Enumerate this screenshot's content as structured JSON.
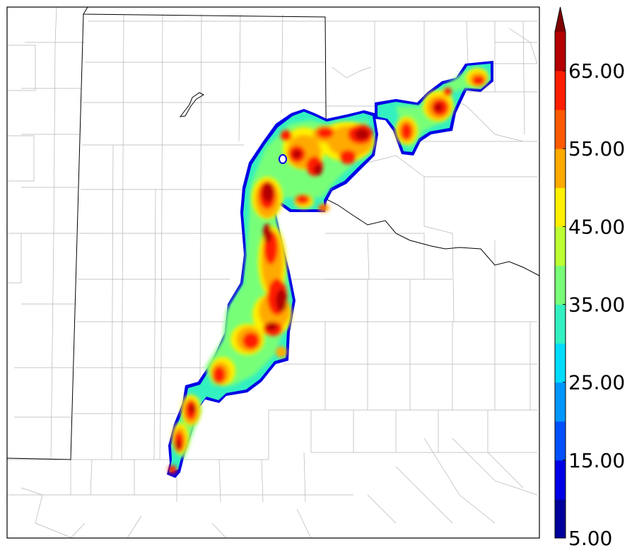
{
  "map": {
    "type": "filled-contour",
    "boundaries": [
      "county-lines",
      "state-lines"
    ]
  },
  "colorbar": {
    "extend": "max",
    "levels": [
      5,
      10,
      15,
      20,
      25,
      30,
      35,
      40,
      45,
      50,
      55,
      60,
      65,
      70
    ],
    "colors": [
      "#00009b",
      "#0000e6",
      "#0050ff",
      "#0096ff",
      "#00dcff",
      "#32f0c0",
      "#78ff78",
      "#bcff32",
      "#fff000",
      "#ffaa00",
      "#ff5a00",
      "#ff1e00",
      "#b40000"
    ],
    "extend_color": "#800000",
    "tick_values": [
      5,
      15,
      25,
      35,
      45,
      55,
      65
    ],
    "tick_labels": [
      "5.00",
      "15.00",
      "25.00",
      "35.00",
      "45.00",
      "55.00",
      "65.00"
    ]
  }
}
